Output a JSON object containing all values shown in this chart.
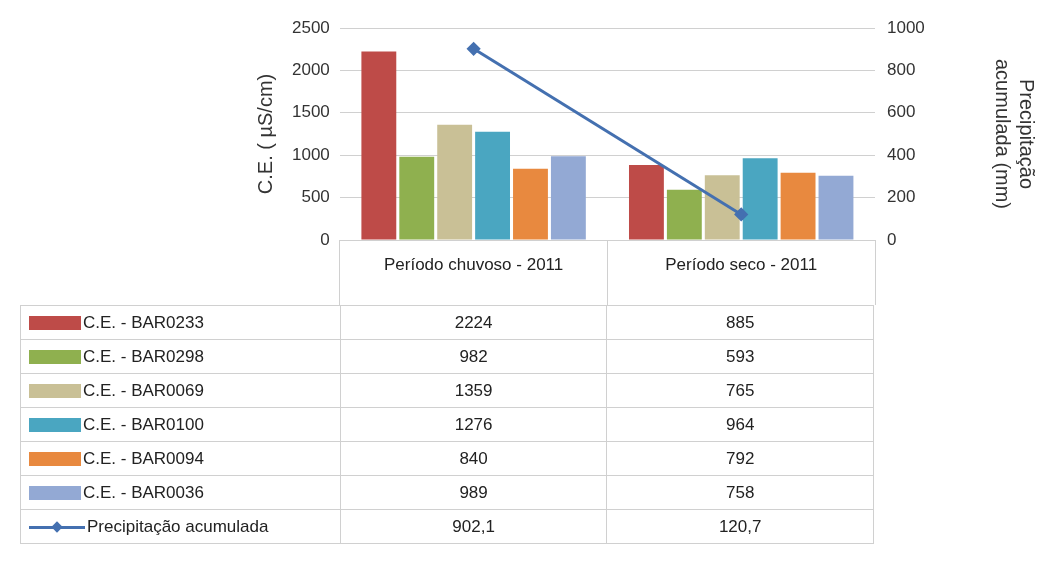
{
  "chart_data": {
    "type": "bar",
    "ylabel": "C.E. ( µS/cm)",
    "y2label": "Precipitação acumulada (mm)",
    "categories": [
      "Período chuvoso - 2011",
      "Período seco - 2011"
    ],
    "series": [
      {
        "name": "C.E. - BAR0233",
        "color": "#be4b48",
        "values": [
          2224,
          885
        ],
        "value_labels": [
          "2224",
          "885"
        ]
      },
      {
        "name": "C.E. - BAR0298",
        "color": "#8fb04f",
        "values": [
          982,
          593
        ],
        "value_labels": [
          "982",
          "593"
        ]
      },
      {
        "name": "C.E. - BAR0069",
        "color": "#c9c096",
        "values": [
          1359,
          765
        ],
        "value_labels": [
          "1359",
          "765"
        ]
      },
      {
        "name": "C.E. - BAR0100",
        "color": "#4aa6c1",
        "values": [
          1276,
          964
        ],
        "value_labels": [
          "1276",
          "964"
        ]
      },
      {
        "name": "C.E. - BAR0094",
        "color": "#e8893f",
        "values": [
          840,
          792
        ],
        "value_labels": [
          "840",
          "792"
        ]
      },
      {
        "name": "C.E. - BAR0036",
        "color": "#93a9d4",
        "values": [
          989,
          758
        ],
        "value_labels": [
          "989",
          "758"
        ]
      },
      {
        "name": "Precipitação acumulada",
        "type": "line",
        "axis": "y2",
        "color": "#4470b0",
        "marker": "diamond",
        "values": [
          902.1,
          120.7
        ],
        "value_labels": [
          "902,1",
          "120,7"
        ]
      }
    ],
    "ylim": [
      0,
      2500
    ],
    "yticks": [
      0,
      500,
      1000,
      1500,
      2000,
      2500
    ],
    "y2lim": [
      0,
      1000
    ],
    "y2ticks": [
      0,
      200,
      400,
      600,
      800,
      1000
    ],
    "grid": "y",
    "legend": "bottom"
  }
}
